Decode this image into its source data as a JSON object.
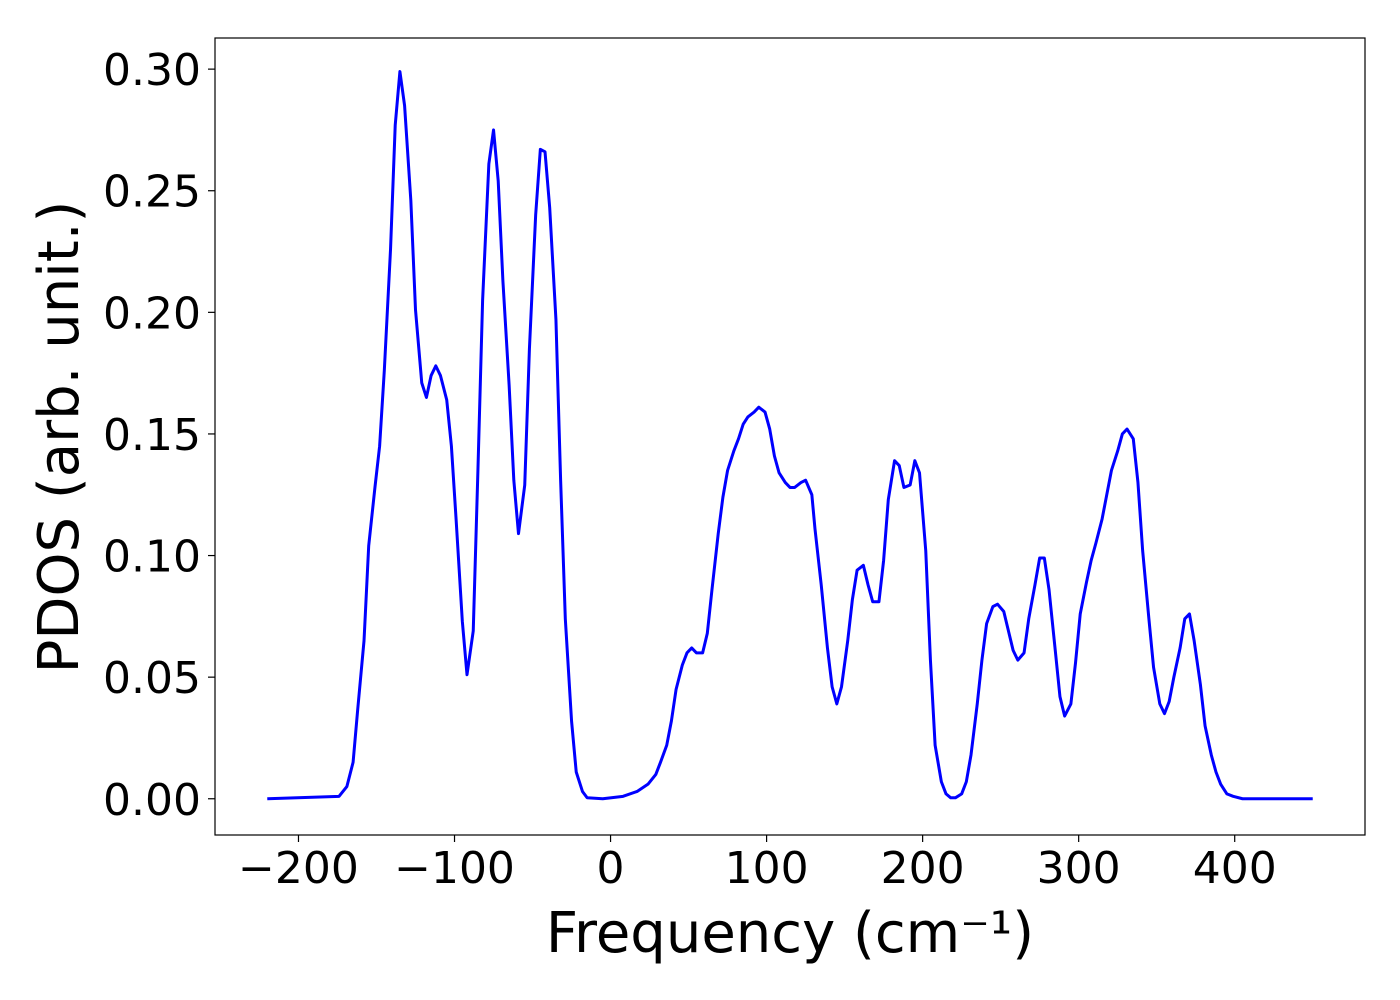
{
  "chart_data": {
    "type": "line",
    "xlabel": "Frequency (cm⁻¹)",
    "ylabel": "PDOS (arb. unit.)",
    "xlim": [
      -253.5,
      483.5
    ],
    "ylim": [
      -0.0149,
      0.3128
    ],
    "xticks": [
      {
        "value": -200,
        "label": "−200"
      },
      {
        "value": -100,
        "label": "−100"
      },
      0,
      100,
      200,
      300,
      400
    ],
    "yticks": [
      {
        "value": 0,
        "label": "0.00"
      },
      {
        "value": 0.05,
        "label": "0.05"
      },
      {
        "value": 0.1,
        "label": "0.10"
      },
      {
        "value": 0.15,
        "label": "0.15"
      },
      {
        "value": 0.2,
        "label": "0.20"
      },
      {
        "value": 0.25,
        "label": "0.25"
      },
      {
        "value": 0.3,
        "label": "0.30"
      }
    ],
    "grid": false,
    "x": [
      -220,
      -174,
      -169,
      -165,
      -162,
      -158,
      -155,
      -151,
      -148,
      -145,
      -141,
      -138,
      -135,
      -132,
      -128,
      -125,
      -121,
      -118,
      -115,
      -112,
      -109,
      -105,
      -102,
      -99,
      -95,
      -92,
      -88,
      -85,
      -82,
      -78,
      -75,
      -72,
      -69,
      -65,
      -62,
      -59,
      -55,
      -52,
      -48,
      -45,
      -42,
      -39,
      -35,
      -32,
      -29,
      -25,
      -22,
      -18,
      -15,
      -5,
      8,
      17,
      24,
      29,
      32,
      36,
      39,
      42,
      46,
      49,
      52,
      55,
      59,
      62,
      65,
      69,
      72,
      75,
      79,
      82,
      85,
      88,
      92,
      95,
      99,
      102,
      105,
      108,
      112,
      115,
      118,
      122,
      125,
      129,
      131,
      135,
      139,
      142,
      145,
      148,
      152,
      155,
      158,
      162,
      165,
      168,
      172,
      175,
      178,
      182,
      185,
      188,
      192,
      195,
      198,
      202,
      205,
      208,
      212,
      215,
      218,
      221,
      225,
      228,
      231,
      235,
      238,
      241,
      245,
      248,
      252,
      255,
      258,
      261,
      265,
      268,
      272,
      275,
      278,
      281,
      285,
      288,
      291,
      295,
      298,
      301,
      305,
      308,
      311,
      315,
      318,
      321,
      325,
      328,
      331,
      335,
      338,
      341,
      345,
      348,
      352,
      355,
      358,
      361,
      365,
      368,
      371,
      374,
      378,
      381,
      385,
      388,
      391,
      395,
      399,
      405,
      450
    ],
    "series": [
      {
        "name": "PDOS",
        "color": "#0000ff",
        "values": [
          0,
          0.001,
          0.005,
          0.015,
          0.037,
          0.065,
          0.104,
          0.128,
          0.145,
          0.176,
          0.226,
          0.277,
          0.299,
          0.285,
          0.246,
          0.201,
          0.171,
          0.165,
          0.174,
          0.178,
          0.174,
          0.164,
          0.145,
          0.115,
          0.073,
          0.051,
          0.069,
          0.135,
          0.205,
          0.261,
          0.275,
          0.254,
          0.213,
          0.17,
          0.131,
          0.109,
          0.129,
          0.185,
          0.24,
          0.267,
          0.266,
          0.243,
          0.197,
          0.131,
          0.074,
          0.032,
          0.011,
          0.003,
          0.0004,
          0,
          0.001,
          0.003,
          0.006,
          0.01,
          0.015,
          0.022,
          0.032,
          0.045,
          0.055,
          0.06,
          0.062,
          0.06,
          0.06,
          0.068,
          0.086,
          0.109,
          0.124,
          0.135,
          0.143,
          0.148,
          0.154,
          0.157,
          0.159,
          0.161,
          0.159,
          0.152,
          0.141,
          0.134,
          0.13,
          0.128,
          0.128,
          0.13,
          0.131,
          0.125,
          0.111,
          0.088,
          0.062,
          0.046,
          0.039,
          0.046,
          0.065,
          0.082,
          0.094,
          0.096,
          0.088,
          0.081,
          0.081,
          0.098,
          0.123,
          0.139,
          0.137,
          0.128,
          0.129,
          0.139,
          0.134,
          0.102,
          0.057,
          0.022,
          0.007,
          0.002,
          0.0004,
          0.0004,
          0.002,
          0.007,
          0.018,
          0.039,
          0.057,
          0.072,
          0.079,
          0.08,
          0.077,
          0.069,
          0.061,
          0.057,
          0.06,
          0.074,
          0.088,
          0.099,
          0.099,
          0.086,
          0.061,
          0.042,
          0.034,
          0.039,
          0.056,
          0.076,
          0.089,
          0.098,
          0.105,
          0.115,
          0.125,
          0.135,
          0.143,
          0.15,
          0.152,
          0.148,
          0.13,
          0.102,
          0.074,
          0.054,
          0.039,
          0.035,
          0.04,
          0.05,
          0.062,
          0.074,
          0.076,
          0.065,
          0.047,
          0.03,
          0.018,
          0.011,
          0.006,
          0.002,
          0.001,
          0,
          0
        ]
      }
    ]
  }
}
